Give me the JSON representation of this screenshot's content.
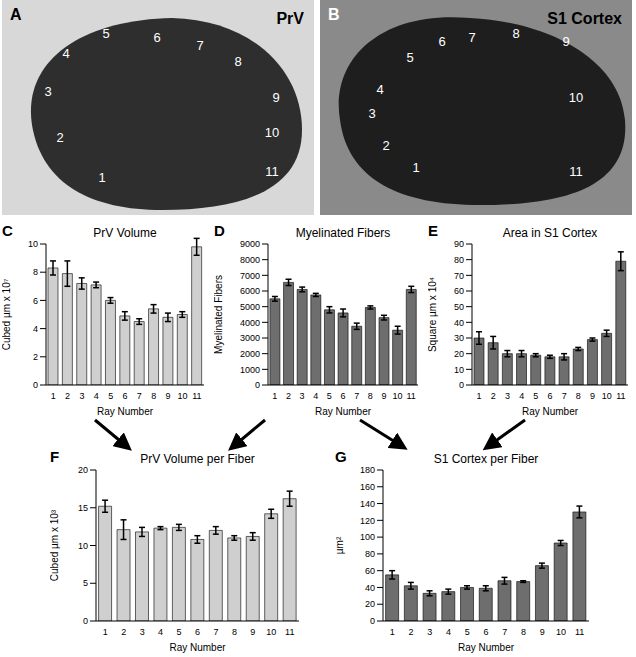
{
  "image_panels": [
    {
      "panel": "A",
      "title": "PrV",
      "labels": [
        "1",
        "2",
        "3",
        "4",
        "5",
        "6",
        "7",
        "8",
        "9",
        "10",
        "11"
      ]
    },
    {
      "panel": "B",
      "title": "S1 Cortex",
      "labels": [
        "1",
        "2",
        "3",
        "4",
        "5",
        "6",
        "7",
        "8",
        "9",
        "10",
        "11"
      ]
    }
  ],
  "chart_data": [
    {
      "panel": "C",
      "type": "bar",
      "title": "PrV Volume",
      "x_label": "Ray Number",
      "y_label": "Cubed µm x 10⁷",
      "categories": [
        "1",
        "2",
        "3",
        "4",
        "5",
        "6",
        "7",
        "8",
        "9",
        "10",
        "11"
      ],
      "values": [
        8.3,
        7.9,
        7.2,
        7.1,
        6.0,
        4.9,
        4.5,
        5.4,
        4.8,
        5.0,
        9.8
      ],
      "errors": [
        0.5,
        0.9,
        0.4,
        0.2,
        0.2,
        0.3,
        0.2,
        0.3,
        0.3,
        0.2,
        0.6
      ],
      "color": "#cfcfcf",
      "ylim": [
        0,
        10
      ],
      "yticks": [
        0,
        2,
        4,
        6,
        8,
        10
      ],
      "grid": false
    },
    {
      "panel": "D",
      "type": "bar",
      "title": "Myelinated Fibers",
      "x_label": "Ray Number",
      "y_label": "Myelinated Fibers",
      "categories": [
        "1",
        "2",
        "3",
        "4",
        "5",
        "6",
        "7",
        "8",
        "9",
        "10",
        "11"
      ],
      "values": [
        5500,
        6550,
        6100,
        5750,
        4800,
        4600,
        3750,
        4950,
        4300,
        3500,
        6100
      ],
      "errors": [
        150,
        200,
        150,
        100,
        200,
        250,
        200,
        100,
        150,
        250,
        200
      ],
      "color": "#6e6e6e",
      "ylim": [
        0,
        9000
      ],
      "yticks": [
        0,
        1000,
        2000,
        3000,
        4000,
        5000,
        6000,
        7000,
        8000,
        9000
      ],
      "grid": false
    },
    {
      "panel": "E",
      "type": "bar",
      "title": "Area in S1 Cortex",
      "x_label": "Ray Number",
      "y_label": "Square µm x 10⁴",
      "categories": [
        "1",
        "2",
        "3",
        "4",
        "5",
        "6",
        "7",
        "8",
        "9",
        "10",
        "11"
      ],
      "values": [
        30,
        27,
        20,
        20,
        19,
        18,
        18,
        23,
        29,
        33,
        79
      ],
      "errors": [
        4,
        4,
        2,
        2,
        1,
        1,
        2,
        1,
        1,
        2,
        6
      ],
      "color": "#6e6e6e",
      "ylim": [
        0,
        90
      ],
      "yticks": [
        0,
        10,
        20,
        30,
        40,
        50,
        60,
        70,
        80,
        90
      ],
      "grid": false
    },
    {
      "panel": "F",
      "type": "bar",
      "title": "PrV Volume per Fiber",
      "x_label": "Ray Number",
      "y_label": "Cubed µm x 10³",
      "categories": [
        "1",
        "2",
        "3",
        "4",
        "5",
        "6",
        "7",
        "8",
        "9",
        "10",
        "11"
      ],
      "values": [
        15.2,
        12.1,
        11.8,
        12.3,
        12.4,
        10.8,
        12.0,
        11.0,
        11.2,
        14.2,
        16.2
      ],
      "errors": [
        0.8,
        1.3,
        0.6,
        0.2,
        0.4,
        0.5,
        0.5,
        0.3,
        0.5,
        0.6,
        1.0
      ],
      "color": "#cfcfcf",
      "ylim": [
        0,
        20
      ],
      "yticks": [
        0,
        5,
        10,
        15,
        20
      ],
      "grid": false
    },
    {
      "panel": "G",
      "type": "bar",
      "title": "S1 Cortex per Fiber",
      "x_label": "Ray Number",
      "y_label": "µm²",
      "categories": [
        "1",
        "2",
        "3",
        "4",
        "5",
        "6",
        "7",
        "8",
        "9",
        "10",
        "11"
      ],
      "values": [
        55,
        42,
        33,
        35,
        40,
        39,
        48,
        47,
        66,
        93,
        130
      ],
      "errors": [
        5,
        4,
        3,
        3,
        2,
        3,
        4,
        1,
        3,
        3,
        7
      ],
      "color": "#6e6e6e",
      "ylim": [
        0,
        180
      ],
      "yticks": [
        0,
        20,
        40,
        60,
        80,
        100,
        120,
        140,
        160,
        180
      ],
      "grid": false
    }
  ]
}
